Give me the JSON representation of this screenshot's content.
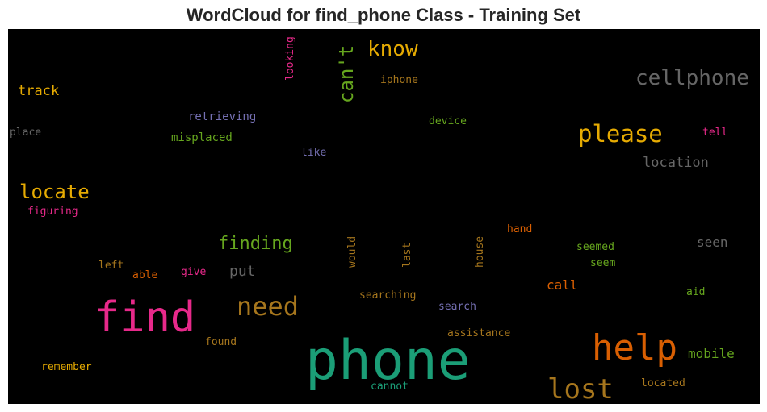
{
  "chart_data": {
    "type": "wordcloud",
    "title": "WordCloud for find_phone Class - Training Set",
    "background": "#000000",
    "words": [
      {
        "text": "phone",
        "color": "#1b9e77"
      },
      {
        "text": "find",
        "color": "#e7298a"
      },
      {
        "text": "help",
        "color": "#d95f02"
      },
      {
        "text": "lost",
        "color": "#a6761d"
      },
      {
        "text": "need",
        "color": "#a6761d"
      },
      {
        "text": "please",
        "color": "#e6ab02"
      },
      {
        "text": "cellphone",
        "color": "#666666"
      },
      {
        "text": "locate",
        "color": "#e6ab02"
      },
      {
        "text": "know",
        "color": "#e6ab02"
      },
      {
        "text": "can't",
        "color": "#66a61e"
      },
      {
        "text": "finding",
        "color": "#66a61e"
      },
      {
        "text": "track",
        "color": "#e6ab02"
      },
      {
        "text": "mobile",
        "color": "#66a61e"
      },
      {
        "text": "location",
        "color": "#666666"
      },
      {
        "text": "call",
        "color": "#d95f02"
      },
      {
        "text": "put",
        "color": "#666666"
      },
      {
        "text": "seen",
        "color": "#666666"
      },
      {
        "text": "retrieving",
        "color": "#7570b3"
      },
      {
        "text": "misplaced",
        "color": "#66a61e"
      },
      {
        "text": "place",
        "color": "#666666"
      },
      {
        "text": "like",
        "color": "#7570b3"
      },
      {
        "text": "looking",
        "color": "#e7298a"
      },
      {
        "text": "iphone",
        "color": "#a6761d"
      },
      {
        "text": "device",
        "color": "#66a61e"
      },
      {
        "text": "tell",
        "color": "#e7298a"
      },
      {
        "text": "figuring",
        "color": "#e7298a"
      },
      {
        "text": "hand",
        "color": "#d95f02"
      },
      {
        "text": "seemed",
        "color": "#66a61e"
      },
      {
        "text": "seem",
        "color": "#66a61e"
      },
      {
        "text": "aid",
        "color": "#66a61e"
      },
      {
        "text": "left",
        "color": "#a6761d"
      },
      {
        "text": "able",
        "color": "#d95f02"
      },
      {
        "text": "give",
        "color": "#e7298a"
      },
      {
        "text": "would",
        "color": "#a6761d"
      },
      {
        "text": "last",
        "color": "#a6761d"
      },
      {
        "text": "house",
        "color": "#a6761d"
      },
      {
        "text": "searching",
        "color": "#a6761d"
      },
      {
        "text": "search",
        "color": "#7570b3"
      },
      {
        "text": "assistance",
        "color": "#a6761d"
      },
      {
        "text": "found",
        "color": "#a6761d"
      },
      {
        "text": "remember",
        "color": "#e6ab02"
      },
      {
        "text": "cannot",
        "color": "#1b9e77"
      },
      {
        "text": "located",
        "color": "#a6761d"
      }
    ]
  }
}
